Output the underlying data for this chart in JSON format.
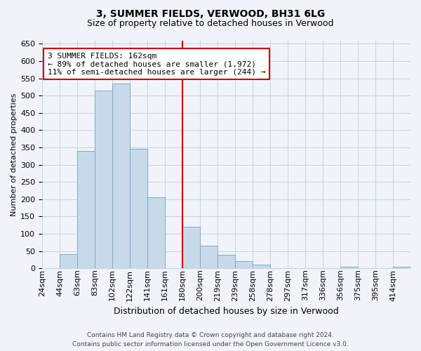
{
  "title": "3, SUMMER FIELDS, VERWOOD, BH31 6LG",
  "subtitle": "Size of property relative to detached houses in Verwood",
  "xlabel": "Distribution of detached houses by size in Verwood",
  "ylabel": "Number of detached properties",
  "bin_labels": [
    "24sqm",
    "44sqm",
    "63sqm",
    "83sqm",
    "102sqm",
    "122sqm",
    "141sqm",
    "161sqm",
    "180sqm",
    "200sqm",
    "219sqm",
    "239sqm",
    "258sqm",
    "278sqm",
    "297sqm",
    "317sqm",
    "336sqm",
    "356sqm",
    "375sqm",
    "395sqm",
    "414sqm"
  ],
  "bar_heights": [
    0,
    40,
    340,
    515,
    535,
    345,
    205,
    0,
    120,
    65,
    38,
    20,
    10,
    0,
    0,
    0,
    0,
    5,
    0,
    0,
    5
  ],
  "bar_color": "#c8daea",
  "bar_edge_color": "#7aaac8",
  "vline_color": "#cc0000",
  "annotation_text": "3 SUMMER FIELDS: 162sqm\n← 89% of detached houses are smaller (1,972)\n11% of semi-detached houses are larger (244) →",
  "annotation_box_color": "white",
  "annotation_box_edge_color": "#cc0000",
  "ylim": [
    0,
    660
  ],
  "yticks": [
    0,
    50,
    100,
    150,
    200,
    250,
    300,
    350,
    400,
    450,
    500,
    550,
    600,
    650
  ],
  "footer_line1": "Contains HM Land Registry data © Crown copyright and database right 2024.",
  "footer_line2": "Contains public sector information licensed under the Open Government Licence v3.0.",
  "background_color": "#f0f4fa",
  "grid_color": "#c8d0e0",
  "title_fontsize": 10,
  "subtitle_fontsize": 9,
  "xlabel_fontsize": 9,
  "ylabel_fontsize": 8,
  "tick_fontsize": 8,
  "annot_fontsize": 8,
  "footer_fontsize": 6.5
}
